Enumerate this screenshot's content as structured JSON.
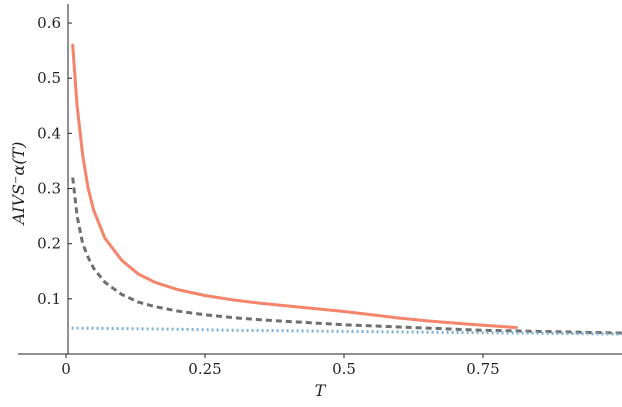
{
  "chart_data": {
    "type": "line",
    "xlabel": "T",
    "ylabel": "AIVS⁻α(T)",
    "xlim": [
      0,
      1.0
    ],
    "ylim": [
      0,
      0.62
    ],
    "x_ticks": [
      {
        "value": 0,
        "label": "0"
      },
      {
        "value": 0.25,
        "label": "0.25"
      },
      {
        "value": 0.5,
        "label": "0.5"
      },
      {
        "value": 0.75,
        "label": "0.75"
      }
    ],
    "y_ticks": [
      {
        "value": 0.1,
        "label": "0.1"
      },
      {
        "value": 0.2,
        "label": "0.2"
      },
      {
        "value": 0.3,
        "label": "0.3"
      },
      {
        "value": 0.4,
        "label": "0.4"
      },
      {
        "value": 0.5,
        "label": "0.5"
      },
      {
        "value": 0.6,
        "label": "0.6"
      }
    ],
    "grid": false,
    "legend": "none",
    "series": [
      {
        "style": "solid",
        "color": "#F4846A",
        "x": [
          0.012,
          0.02,
          0.03,
          0.04,
          0.05,
          0.07,
          0.1,
          0.13,
          0.16,
          0.2,
          0.25,
          0.3,
          0.35,
          0.4,
          0.45,
          0.5,
          0.55,
          0.6,
          0.65,
          0.7,
          0.75,
          0.81
        ],
        "y": [
          0.56,
          0.45,
          0.36,
          0.3,
          0.26,
          0.21,
          0.17,
          0.145,
          0.13,
          0.117,
          0.106,
          0.098,
          0.092,
          0.087,
          0.082,
          0.077,
          0.071,
          0.065,
          0.06,
          0.056,
          0.052,
          0.048
        ]
      },
      {
        "style": "dashed",
        "color": "#6E6E6E",
        "x": [
          0.012,
          0.02,
          0.03,
          0.04,
          0.05,
          0.07,
          0.1,
          0.13,
          0.16,
          0.2,
          0.25,
          0.3,
          0.35,
          0.4,
          0.45,
          0.5,
          0.55,
          0.6,
          0.65,
          0.7,
          0.75,
          0.8,
          0.85,
          0.9,
          0.95,
          1.0
        ],
        "y": [
          0.32,
          0.25,
          0.2,
          0.175,
          0.155,
          0.13,
          0.108,
          0.094,
          0.086,
          0.078,
          0.071,
          0.066,
          0.062,
          0.059,
          0.056,
          0.053,
          0.051,
          0.049,
          0.047,
          0.045,
          0.043,
          0.042,
          0.041,
          0.04,
          0.039,
          0.038
        ]
      },
      {
        "style": "dotted",
        "color": "#7FB2D8",
        "x": [
          0.01,
          0.1,
          0.2,
          0.3,
          0.4,
          0.5,
          0.6,
          0.7,
          0.8,
          0.9,
          1.0
        ],
        "y": [
          0.047,
          0.046,
          0.045,
          0.043,
          0.042,
          0.041,
          0.04,
          0.039,
          0.038,
          0.037,
          0.036
        ]
      }
    ]
  }
}
